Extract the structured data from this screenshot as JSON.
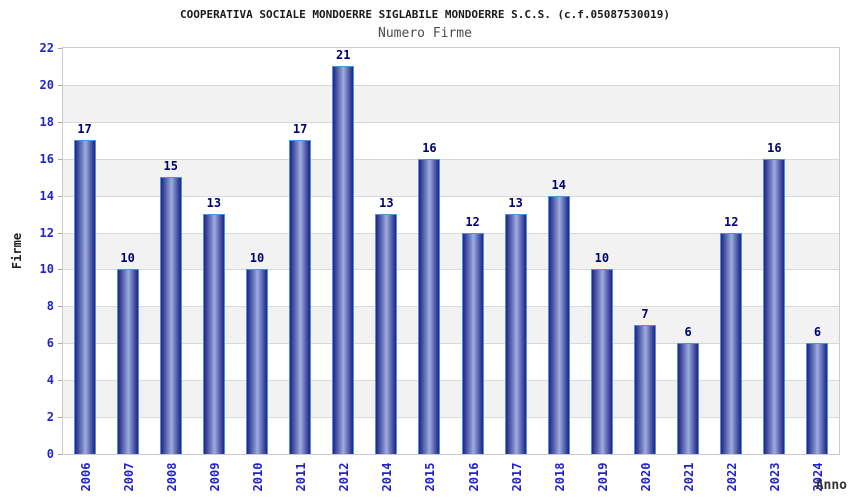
{
  "chart_data": {
    "type": "bar",
    "title": "COOPERATIVA SOCIALE MONDOERRE SIGLABILE MONDOERRE S.C.S. (c.f.05087530019)",
    "subtitle": "Numero Firme",
    "xlabel": "Anno",
    "ylabel": "Firme",
    "categories": [
      "2006",
      "2007",
      "2008",
      "2009",
      "2010",
      "2011",
      "2012",
      "2014",
      "2015",
      "2016",
      "2017",
      "2018",
      "2019",
      "2020",
      "2021",
      "2022",
      "2023",
      "2024"
    ],
    "values": [
      17,
      10,
      15,
      13,
      10,
      17,
      21,
      13,
      16,
      12,
      13,
      14,
      10,
      7,
      6,
      12,
      16,
      6
    ],
    "ylim": [
      0,
      22
    ],
    "ytick_step": 2,
    "grid": true,
    "legend": "none",
    "colors": {
      "bar_dark": "#222288",
      "bar_light": "#9fadde",
      "bar_outline": "#4a94e0",
      "value_label": "#000070",
      "tick_label": "#2222cc",
      "band": "#f2f2f2",
      "gridline": "#d9d9d9",
      "plot_border": "#cccccc",
      "title": "#1a1a1a",
      "subtitle": "#4d4d4d",
      "axis_title": "#222222"
    }
  }
}
